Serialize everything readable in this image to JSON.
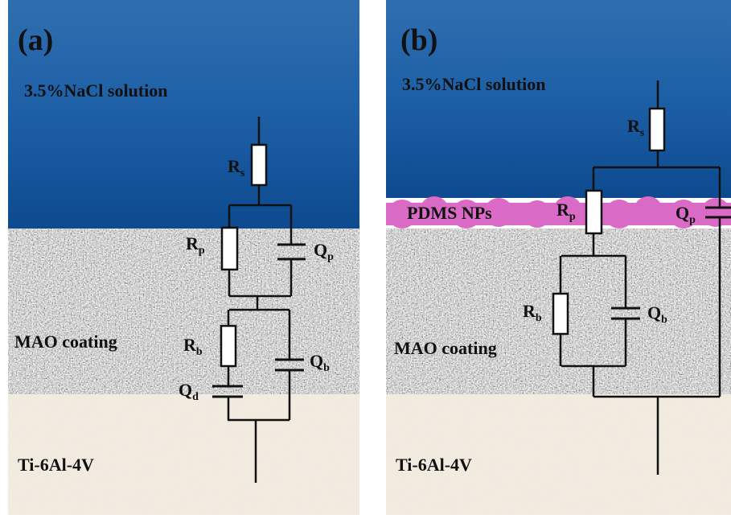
{
  "panels": [
    {
      "label": "(a)",
      "solution": "3.5%NaCl solution",
      "coating": "MAO coating",
      "substrate": "Ti-6Al-4V",
      "components": [
        {
          "symbol": "R",
          "subscript": "s"
        },
        {
          "symbol": "R",
          "subscript": "p"
        },
        {
          "symbol": "Q",
          "subscript": "p"
        },
        {
          "symbol": "R",
          "subscript": "b"
        },
        {
          "symbol": "Q",
          "subscript": "b"
        },
        {
          "symbol": "Q",
          "subscript": "d"
        }
      ]
    },
    {
      "label": "(b)",
      "solution": "3.5%NaCl solution",
      "layer": "PDMS NPs",
      "coating": "MAO coating",
      "substrate": "Ti-6Al-4V",
      "components": [
        {
          "symbol": "R",
          "subscript": "s"
        },
        {
          "symbol": "R",
          "subscript": "p"
        },
        {
          "symbol": "Q",
          "subscript": "p"
        },
        {
          "symbol": "R",
          "subscript": "b"
        },
        {
          "symbol": "Q",
          "subscript": "b"
        }
      ]
    }
  ]
}
